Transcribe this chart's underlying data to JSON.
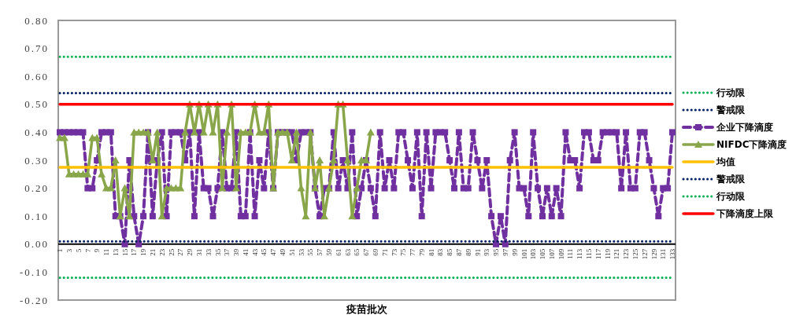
{
  "chart_data": {
    "type": "line",
    "xlabel": "疫苗批次",
    "categories": [
      "1",
      null,
      "3",
      null,
      "5",
      null,
      "7",
      null,
      "9",
      null,
      "11",
      null,
      "13",
      null,
      "15",
      null,
      "17",
      null,
      "19",
      null,
      "21",
      null,
      "23",
      null,
      "25",
      null,
      "27",
      null,
      "29",
      null,
      "31",
      null,
      "33",
      null,
      "35",
      null,
      "37",
      null,
      "39",
      null,
      "41",
      null,
      "43",
      null,
      "45",
      null,
      "47",
      null,
      "49",
      null,
      "51",
      null,
      "53",
      null,
      "55",
      null,
      "57",
      null,
      "59",
      null,
      "61",
      null,
      "63",
      null,
      "65",
      null,
      "67",
      null,
      "69",
      null,
      "71",
      null,
      "73",
      null,
      "75",
      null,
      "77",
      null,
      "79",
      null,
      "81",
      null,
      "83",
      null,
      "85",
      null,
      "87",
      null,
      "89",
      null,
      "91",
      null,
      "93",
      null,
      "95",
      null,
      "97",
      null,
      "99",
      null,
      "101",
      null,
      "103",
      null,
      "105",
      null,
      "107",
      null,
      "109",
      null,
      "111",
      null,
      "113",
      null,
      "115",
      null,
      "117",
      null,
      "119",
      null,
      "121",
      null,
      "123",
      null,
      "125",
      null,
      "127",
      null,
      "129",
      null,
      "131",
      null,
      "133"
    ],
    "ylim": [
      -0.2,
      0.8
    ],
    "yticks": [
      {
        "value": -0.2,
        "label": "-0.20"
      },
      {
        "value": -0.1,
        "label": "-0.10"
      },
      {
        "value": 0,
        "label": "0.00"
      },
      {
        "value": 0.1,
        "label": "0.10"
      },
      {
        "value": 0.2,
        "label": "0.20"
      },
      {
        "value": 0.3,
        "label": "0.30"
      },
      {
        "value": 0.4,
        "label": "0.40"
      },
      {
        "value": 0.5,
        "label": "0.50"
      },
      {
        "value": 0.6,
        "label": "0.60"
      },
      {
        "value": 0.7,
        "label": "0.70"
      },
      {
        "value": 0.8,
        "label": "0.80"
      }
    ],
    "legend": "right",
    "series": [
      {
        "name": "行动限",
        "color": "#00b050",
        "marker": "none",
        "line_style": "dotted",
        "values": [
          0.67,
          0.67,
          0.67,
          0.67,
          0.67,
          0.67,
          0.67,
          0.67,
          0.67,
          0.67,
          0.67,
          0.67,
          0.67,
          0.67,
          0.67,
          0.67,
          0.67,
          0.67,
          0.67,
          0.67,
          0.67,
          0.67,
          0.67,
          0.67,
          0.67,
          0.67,
          0.67,
          0.67,
          0.67,
          0.67,
          0.67,
          0.67,
          0.67,
          0.67,
          0.67,
          0.67,
          0.67,
          0.67,
          0.67,
          0.67,
          0.67,
          0.67,
          0.67,
          0.67,
          0.67,
          0.67,
          0.67,
          0.67,
          0.67,
          0.67,
          0.67,
          0.67,
          0.67,
          0.67,
          0.67,
          0.67,
          0.67,
          0.67,
          0.67,
          0.67,
          0.67,
          0.67,
          0.67,
          0.67,
          0.67,
          0.67,
          0.67,
          0.67,
          0.67,
          0.67,
          0.67,
          0.67,
          0.67,
          0.67,
          0.67,
          0.67,
          0.67,
          0.67,
          0.67,
          0.67,
          0.67,
          0.67,
          0.67,
          0.67,
          0.67,
          0.67,
          0.67,
          0.67,
          0.67,
          0.67,
          0.67,
          0.67,
          0.67,
          0.67,
          0.67,
          0.67,
          0.67,
          0.67,
          0.67,
          0.67,
          0.67,
          0.67,
          0.67,
          0.67,
          0.67,
          0.67,
          0.67,
          0.67,
          0.67,
          0.67,
          0.67,
          0.67,
          0.67,
          0.67,
          0.67,
          0.67,
          0.67,
          0.67,
          0.67,
          0.67,
          0.67,
          0.67,
          0.67,
          0.67,
          0.67,
          0.67,
          0.67,
          0.67,
          0.67,
          0.67,
          0.67,
          0.67,
          0.67
        ]
      },
      {
        "name": "警戒限",
        "color": "#002060",
        "marker": "none",
        "line_style": "dotted",
        "values": [
          0.54,
          0.54,
          0.54,
          0.54,
          0.54,
          0.54,
          0.54,
          0.54,
          0.54,
          0.54,
          0.54,
          0.54,
          0.54,
          0.54,
          0.54,
          0.54,
          0.54,
          0.54,
          0.54,
          0.54,
          0.54,
          0.54,
          0.54,
          0.54,
          0.54,
          0.54,
          0.54,
          0.54,
          0.54,
          0.54,
          0.54,
          0.54,
          0.54,
          0.54,
          0.54,
          0.54,
          0.54,
          0.54,
          0.54,
          0.54,
          0.54,
          0.54,
          0.54,
          0.54,
          0.54,
          0.54,
          0.54,
          0.54,
          0.54,
          0.54,
          0.54,
          0.54,
          0.54,
          0.54,
          0.54,
          0.54,
          0.54,
          0.54,
          0.54,
          0.54,
          0.54,
          0.54,
          0.54,
          0.54,
          0.54,
          0.54,
          0.54,
          0.54,
          0.54,
          0.54,
          0.54,
          0.54,
          0.54,
          0.54,
          0.54,
          0.54,
          0.54,
          0.54,
          0.54,
          0.54,
          0.54,
          0.54,
          0.54,
          0.54,
          0.54,
          0.54,
          0.54,
          0.54,
          0.54,
          0.54,
          0.54,
          0.54,
          0.54,
          0.54,
          0.54,
          0.54,
          0.54,
          0.54,
          0.54,
          0.54,
          0.54,
          0.54,
          0.54,
          0.54,
          0.54,
          0.54,
          0.54,
          0.54,
          0.54,
          0.54,
          0.54,
          0.54,
          0.54,
          0.54,
          0.54,
          0.54,
          0.54,
          0.54,
          0.54,
          0.54,
          0.54,
          0.54,
          0.54,
          0.54,
          0.54,
          0.54,
          0.54,
          0.54,
          0.54,
          0.54,
          0.54,
          0.54,
          0.54
        ]
      },
      {
        "name": "企业下降滴度",
        "color": "#7030a0",
        "marker": "square",
        "line_style": "dashed",
        "values": [
          0.4,
          0.4,
          0.4,
          0.4,
          0.4,
          0.4,
          0.2,
          0.2,
          0.3,
          0.4,
          0.4,
          0.4,
          0.1,
          0.1,
          0,
          0.3,
          0.1,
          0,
          0.1,
          0.4,
          0.1,
          0.3,
          0.4,
          0.1,
          0.4,
          0.4,
          0.4,
          0.3,
          0.4,
          0.1,
          0.4,
          0.2,
          0.2,
          0.1,
          0.2,
          0.4,
          0.2,
          0.2,
          0.4,
          0.1,
          0.1,
          0.4,
          0.1,
          0.3,
          0.2,
          0.4,
          0.2,
          0.4,
          0.4,
          0.4,
          0.4,
          0.3,
          0.4,
          0.4,
          0.4,
          0.2,
          0.1,
          0.2,
          0.2,
          0.4,
          0.2,
          0.3,
          0.2,
          0.4,
          0.1,
          0.2,
          0.3,
          0.2,
          0.1,
          0.4,
          0.2,
          0.3,
          0.2,
          0.4,
          0.4,
          0.3,
          0.2,
          0.4,
          0.1,
          0.4,
          0.2,
          0.4,
          0.4,
          0.4,
          0.3,
          0.2,
          0.4,
          0.2,
          0.2,
          0.4,
          0.3,
          0.2,
          0.3,
          0.1,
          0,
          0.1,
          0,
          0.3,
          0.4,
          0.2,
          0.2,
          0.1,
          0.4,
          0.2,
          0.1,
          0.2,
          0.1,
          0.2,
          0.1,
          0.4,
          0.3,
          0.3,
          0.2,
          0.4,
          0.4,
          0.3,
          0.3,
          0.4,
          0.4,
          0.4,
          0.4,
          0.2,
          0.4,
          0.2,
          0.2,
          0.4,
          0.4,
          0.3,
          0.2,
          0.1,
          0.2,
          0.2,
          0.4
        ]
      },
      {
        "name": "NIFDC下降滴度",
        "color": "#8aa64a",
        "marker": "triangle",
        "line_style": "solid",
        "values": [
          0.38,
          0.38,
          0.25,
          0.25,
          0.25,
          0.25,
          0.25,
          0.38,
          0.38,
          0.25,
          0.2,
          0.2,
          0.3,
          0.1,
          0.2,
          0.1,
          0.4,
          0.4,
          0.4,
          0.4,
          0.3,
          0.4,
          0.1,
          0.2,
          0.2,
          0.2,
          0.2,
          0.4,
          0.5,
          0.4,
          0.5,
          0.4,
          0.5,
          0.4,
          0.5,
          0.2,
          0.4,
          0.5,
          0.2,
          0.4,
          0.4,
          0.4,
          0.5,
          0.4,
          0.4,
          0.5,
          0.2,
          0.4,
          0.4,
          0.4,
          0.3,
          0.4,
          0.2,
          0.1,
          0.4,
          0.2,
          0.3,
          0.1,
          0.2,
          0.3,
          0.5,
          0.5,
          0.3,
          0.1,
          0.2,
          0.3,
          0.3,
          0.4,
          null,
          null,
          null,
          null,
          null,
          null,
          null,
          null,
          null,
          null,
          null,
          null,
          null,
          null,
          null,
          null,
          null,
          null,
          null,
          null,
          null,
          null,
          null,
          null,
          null,
          null,
          null,
          null,
          null,
          null,
          null,
          null,
          null,
          null,
          null,
          null,
          null,
          null,
          null,
          null,
          null,
          null,
          null,
          null,
          null,
          null,
          null,
          null,
          null,
          null,
          null,
          null,
          null,
          null,
          null,
          null,
          null,
          null,
          null,
          null,
          null,
          null,
          null,
          null,
          null
        ]
      },
      {
        "name": "均值",
        "color": "#ffc000",
        "marker": "none",
        "line_style": "solid",
        "values": [
          0.275,
          0.275,
          0.275,
          0.275,
          0.275,
          0.275,
          0.275,
          0.275,
          0.275,
          0.275,
          0.275,
          0.275,
          0.275,
          0.275,
          0.275,
          0.275,
          0.275,
          0.275,
          0.275,
          0.275,
          0.275,
          0.275,
          0.275,
          0.275,
          0.275,
          0.275,
          0.275,
          0.275,
          0.275,
          0.275,
          0.275,
          0.275,
          0.275,
          0.275,
          0.275,
          0.275,
          0.275,
          0.275,
          0.275,
          0.275,
          0.275,
          0.275,
          0.275,
          0.275,
          0.275,
          0.275,
          0.275,
          0.275,
          0.275,
          0.275,
          0.275,
          0.275,
          0.275,
          0.275,
          0.275,
          0.275,
          0.275,
          0.275,
          0.275,
          0.275,
          0.275,
          0.275,
          0.275,
          0.275,
          0.275,
          0.275,
          0.275,
          0.275,
          0.275,
          0.275,
          0.275,
          0.275,
          0.275,
          0.275,
          0.275,
          0.275,
          0.275,
          0.275,
          0.275,
          0.275,
          0.275,
          0.275,
          0.275,
          0.275,
          0.275,
          0.275,
          0.275,
          0.275,
          0.275,
          0.275,
          0.275,
          0.275,
          0.275,
          0.275,
          0.275,
          0.275,
          0.275,
          0.275,
          0.275,
          0.275,
          0.275,
          0.275,
          0.275,
          0.275,
          0.275,
          0.275,
          0.275,
          0.275,
          0.275,
          0.275,
          0.275,
          0.275,
          0.275,
          0.275,
          0.275,
          0.275,
          0.275,
          0.275,
          0.275,
          0.275,
          0.275,
          0.275,
          0.275,
          0.275,
          0.275,
          0.275,
          0.275,
          0.275,
          0.275,
          0.275,
          0.275,
          0.275,
          0.275
        ]
      },
      {
        "name": "警戒限",
        "color": "#002060",
        "marker": "none",
        "line_style": "dotted",
        "values": [
          0.01,
          0.01,
          0.01,
          0.01,
          0.01,
          0.01,
          0.01,
          0.01,
          0.01,
          0.01,
          0.01,
          0.01,
          0.01,
          0.01,
          0.01,
          0.01,
          0.01,
          0.01,
          0.01,
          0.01,
          0.01,
          0.01,
          0.01,
          0.01,
          0.01,
          0.01,
          0.01,
          0.01,
          0.01,
          0.01,
          0.01,
          0.01,
          0.01,
          0.01,
          0.01,
          0.01,
          0.01,
          0.01,
          0.01,
          0.01,
          0.01,
          0.01,
          0.01,
          0.01,
          0.01,
          0.01,
          0.01,
          0.01,
          0.01,
          0.01,
          0.01,
          0.01,
          0.01,
          0.01,
          0.01,
          0.01,
          0.01,
          0.01,
          0.01,
          0.01,
          0.01,
          0.01,
          0.01,
          0.01,
          0.01,
          0.01,
          0.01,
          0.01,
          0.01,
          0.01,
          0.01,
          0.01,
          0.01,
          0.01,
          0.01,
          0.01,
          0.01,
          0.01,
          0.01,
          0.01,
          0.01,
          0.01,
          0.01,
          0.01,
          0.01,
          0.01,
          0.01,
          0.01,
          0.01,
          0.01,
          0.01,
          0.01,
          0.01,
          0.01,
          0.01,
          0.01,
          0.01,
          0.01,
          0.01,
          0.01,
          0.01,
          0.01,
          0.01,
          0.01,
          0.01,
          0.01,
          0.01,
          0.01,
          0.01,
          0.01,
          0.01,
          0.01,
          0.01,
          0.01,
          0.01,
          0.01,
          0.01,
          0.01,
          0.01,
          0.01,
          0.01,
          0.01,
          0.01,
          0.01,
          0.01,
          0.01,
          0.01,
          0.01,
          0.01,
          0.01,
          0.01,
          0.01,
          0.01
        ]
      },
      {
        "name": "行动限",
        "color": "#00b050",
        "marker": "none",
        "line_style": "dotted",
        "values": [
          -0.12,
          -0.12,
          -0.12,
          -0.12,
          -0.12,
          -0.12,
          -0.12,
          -0.12,
          -0.12,
          -0.12,
          -0.12,
          -0.12,
          -0.12,
          -0.12,
          -0.12,
          -0.12,
          -0.12,
          -0.12,
          -0.12,
          -0.12,
          -0.12,
          -0.12,
          -0.12,
          -0.12,
          -0.12,
          -0.12,
          -0.12,
          -0.12,
          -0.12,
          -0.12,
          -0.12,
          -0.12,
          -0.12,
          -0.12,
          -0.12,
          -0.12,
          -0.12,
          -0.12,
          -0.12,
          -0.12,
          -0.12,
          -0.12,
          -0.12,
          -0.12,
          -0.12,
          -0.12,
          -0.12,
          -0.12,
          -0.12,
          -0.12,
          -0.12,
          -0.12,
          -0.12,
          -0.12,
          -0.12,
          -0.12,
          -0.12,
          -0.12,
          -0.12,
          -0.12,
          -0.12,
          -0.12,
          -0.12,
          -0.12,
          -0.12,
          -0.12,
          -0.12,
          -0.12,
          -0.12,
          -0.12,
          -0.12,
          -0.12,
          -0.12,
          -0.12,
          -0.12,
          -0.12,
          -0.12,
          -0.12,
          -0.12,
          -0.12,
          -0.12,
          -0.12,
          -0.12,
          -0.12,
          -0.12,
          -0.12,
          -0.12,
          -0.12,
          -0.12,
          -0.12,
          -0.12,
          -0.12,
          -0.12,
          -0.12,
          -0.12,
          -0.12,
          -0.12,
          -0.12,
          -0.12,
          -0.12,
          -0.12,
          -0.12,
          -0.12,
          -0.12,
          -0.12,
          -0.12,
          -0.12,
          -0.12,
          -0.12,
          -0.12,
          -0.12,
          -0.12,
          -0.12,
          -0.12,
          -0.12,
          -0.12,
          -0.12,
          -0.12,
          -0.12,
          -0.12,
          -0.12,
          -0.12,
          -0.12,
          -0.12,
          -0.12,
          -0.12,
          -0.12,
          -0.12,
          -0.12,
          -0.12,
          -0.12,
          -0.12,
          -0.12
        ]
      },
      {
        "name": "下降滴度上限",
        "color": "#ff0000",
        "marker": "none",
        "line_style": "solid",
        "values": [
          0.5,
          0.5,
          0.5,
          0.5,
          0.5,
          0.5,
          0.5,
          0.5,
          0.5,
          0.5,
          0.5,
          0.5,
          0.5,
          0.5,
          0.5,
          0.5,
          0.5,
          0.5,
          0.5,
          0.5,
          0.5,
          0.5,
          0.5,
          0.5,
          0.5,
          0.5,
          0.5,
          0.5,
          0.5,
          0.5,
          0.5,
          0.5,
          0.5,
          0.5,
          0.5,
          0.5,
          0.5,
          0.5,
          0.5,
          0.5,
          0.5,
          0.5,
          0.5,
          0.5,
          0.5,
          0.5,
          0.5,
          0.5,
          0.5,
          0.5,
          0.5,
          0.5,
          0.5,
          0.5,
          0.5,
          0.5,
          0.5,
          0.5,
          0.5,
          0.5,
          0.5,
          0.5,
          0.5,
          0.5,
          0.5,
          0.5,
          0.5,
          0.5,
          0.5,
          0.5,
          0.5,
          0.5,
          0.5,
          0.5,
          0.5,
          0.5,
          0.5,
          0.5,
          0.5,
          0.5,
          0.5,
          0.5,
          0.5,
          0.5,
          0.5,
          0.5,
          0.5,
          0.5,
          0.5,
          0.5,
          0.5,
          0.5,
          0.5,
          0.5,
          0.5,
          0.5,
          0.5,
          0.5,
          0.5,
          0.5,
          0.5,
          0.5,
          0.5,
          0.5,
          0.5,
          0.5,
          0.5,
          0.5,
          0.5,
          0.5,
          0.5,
          0.5,
          0.5,
          0.5,
          0.5,
          0.5,
          0.5,
          0.5,
          0.5,
          0.5,
          0.5,
          0.5,
          0.5,
          0.5,
          0.5,
          0.5,
          0.5,
          0.5,
          0.5,
          0.5,
          0.5,
          0.5,
          0.5
        ]
      }
    ]
  }
}
